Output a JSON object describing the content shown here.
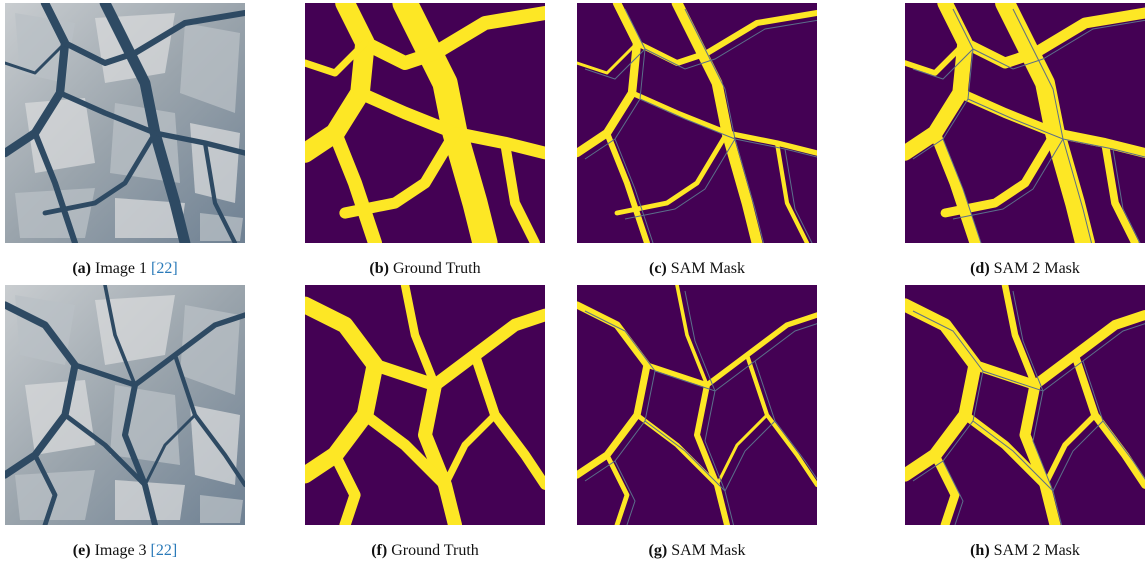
{
  "panels": [
    {
      "label": "(a)",
      "caption": "Image 1",
      "ref": "[22]"
    },
    {
      "label": "(b)",
      "caption": "Ground Truth"
    },
    {
      "label": "(c)",
      "caption": "SAM Mask"
    },
    {
      "label": "(d)",
      "caption": "SAM 2 Mask"
    },
    {
      "label": "(e)",
      "caption": "Image 3",
      "ref": "[22]"
    },
    {
      "label": "(f)",
      "caption": "Ground Truth"
    },
    {
      "label": "(g)",
      "caption": "SAM Mask"
    },
    {
      "label": "(h)",
      "caption": "SAM 2 Mask"
    }
  ]
}
